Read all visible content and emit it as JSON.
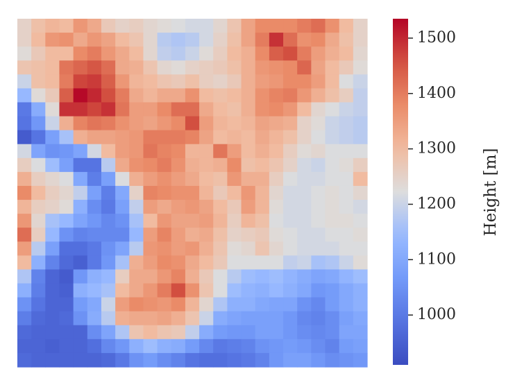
{
  "chart_data": {
    "type": "heatmap",
    "title": "",
    "xlabel": "",
    "ylabel": "",
    "rows": 25,
    "cols": 25,
    "colormap": "coolwarm",
    "vmin": 910,
    "vmax": 1535,
    "colorbar": {
      "label": "Height [m]",
      "ticks": [
        1000,
        1100,
        1200,
        1300,
        1400,
        1500
      ],
      "tick_labels": [
        "1000",
        "1100",
        "1200",
        "1300",
        "1400",
        "1500"
      ]
    },
    "values": [
      [
        1250,
        1290,
        1310,
        1300,
        1360,
        1330,
        1270,
        1250,
        1260,
        1240,
        1230,
        1220,
        1210,
        1210,
        1240,
        1280,
        1340,
        1380,
        1380,
        1380,
        1400,
        1420,
        1370,
        1300,
        1250
      ],
      [
        1250,
        1300,
        1360,
        1370,
        1330,
        1360,
        1340,
        1300,
        1280,
        1240,
        1180,
        1170,
        1180,
        1210,
        1250,
        1290,
        1340,
        1400,
        1490,
        1420,
        1370,
        1380,
        1330,
        1290,
        1250
      ],
      [
        1230,
        1270,
        1300,
        1300,
        1380,
        1400,
        1360,
        1330,
        1300,
        1240,
        1190,
        1180,
        1200,
        1230,
        1260,
        1300,
        1320,
        1380,
        1440,
        1460,
        1400,
        1350,
        1320,
        1300,
        1240
      ],
      [
        1280,
        1290,
        1300,
        1410,
        1430,
        1450,
        1420,
        1330,
        1320,
        1280,
        1240,
        1230,
        1250,
        1260,
        1270,
        1290,
        1320,
        1360,
        1370,
        1380,
        1430,
        1340,
        1300,
        1270,
        1230
      ],
      [
        1200,
        1290,
        1300,
        1400,
        1470,
        1480,
        1440,
        1360,
        1310,
        1300,
        1280,
        1270,
        1290,
        1260,
        1250,
        1270,
        1320,
        1350,
        1360,
        1380,
        1380,
        1350,
        1300,
        1220,
        1200
      ],
      [
        1140,
        1230,
        1270,
        1440,
        1530,
        1500,
        1460,
        1400,
        1330,
        1310,
        1330,
        1330,
        1370,
        1300,
        1290,
        1300,
        1320,
        1370,
        1390,
        1400,
        1360,
        1320,
        1290,
        1260,
        1190
      ],
      [
        1000,
        1110,
        1230,
        1490,
        1490,
        1470,
        1490,
        1410,
        1350,
        1350,
        1380,
        1420,
        1420,
        1330,
        1300,
        1290,
        1320,
        1370,
        1380,
        1360,
        1300,
        1240,
        1220,
        1200,
        1190
      ],
      [
        990,
        1060,
        1200,
        1320,
        1390,
        1410,
        1400,
        1370,
        1350,
        1340,
        1360,
        1380,
        1460,
        1350,
        1310,
        1300,
        1310,
        1340,
        1330,
        1320,
        1250,
        1230,
        1200,
        1190,
        1180
      ],
      [
        940,
        990,
        1080,
        1160,
        1320,
        1340,
        1340,
        1350,
        1360,
        1400,
        1400,
        1400,
        1390,
        1340,
        1300,
        1310,
        1300,
        1330,
        1310,
        1290,
        1250,
        1220,
        1200,
        1190,
        1180
      ],
      [
        1210,
        1090,
        1050,
        1060,
        1090,
        1210,
        1300,
        1350,
        1360,
        1410,
        1390,
        1380,
        1310,
        1310,
        1410,
        1350,
        1300,
        1320,
        1300,
        1260,
        1230,
        1240,
        1220,
        1220,
        1220
      ],
      [
        1260,
        1220,
        1150,
        1080,
        990,
        990,
        1180,
        1330,
        1370,
        1380,
        1400,
        1370,
        1320,
        1310,
        1320,
        1380,
        1290,
        1300,
        1280,
        1250,
        1210,
        1200,
        1220,
        1230,
        1260
      ],
      [
        1320,
        1260,
        1240,
        1220,
        1100,
        1010,
        1080,
        1220,
        1320,
        1350,
        1370,
        1350,
        1330,
        1300,
        1290,
        1360,
        1320,
        1320,
        1260,
        1220,
        1210,
        1210,
        1220,
        1220,
        1300
      ],
      [
        1380,
        1300,
        1260,
        1240,
        1190,
        1080,
        1010,
        1100,
        1250,
        1390,
        1380,
        1370,
        1370,
        1310,
        1270,
        1300,
        1360,
        1310,
        1240,
        1210,
        1210,
        1220,
        1230,
        1220,
        1240
      ],
      [
        1310,
        1260,
        1250,
        1230,
        1120,
        1040,
        1000,
        1080,
        1190,
        1350,
        1330,
        1350,
        1360,
        1340,
        1300,
        1270,
        1350,
        1310,
        1230,
        1210,
        1210,
        1220,
        1230,
        1220,
        1210
      ],
      [
        1360,
        1240,
        1160,
        1140,
        1090,
        1060,
        1030,
        1050,
        1160,
        1300,
        1360,
        1340,
        1340,
        1350,
        1310,
        1260,
        1310,
        1290,
        1220,
        1210,
        1210,
        1220,
        1230,
        1230,
        1220
      ],
      [
        1420,
        1260,
        1140,
        1050,
        1020,
        1030,
        1030,
        1030,
        1140,
        1350,
        1390,
        1350,
        1320,
        1330,
        1290,
        1250,
        1260,
        1270,
        1230,
        1220,
        1210,
        1210,
        1220,
        1220,
        1230
      ],
      [
        1350,
        1180,
        1080,
        980,
        980,
        1000,
        1050,
        1090,
        1180,
        1360,
        1370,
        1350,
        1360,
        1320,
        1280,
        1230,
        1240,
        1280,
        1240,
        1220,
        1210,
        1210,
        1210,
        1220,
        1220
      ],
      [
        1300,
        1120,
        1020,
        970,
        950,
        1000,
        1060,
        1160,
        1320,
        1350,
        1380,
        1370,
        1330,
        1300,
        1270,
        1220,
        1220,
        1220,
        1220,
        1190,
        1200,
        1160,
        1170,
        1200,
        1230
      ],
      [
        1170,
        1020,
        960,
        940,
        1060,
        1120,
        1140,
        1260,
        1330,
        1330,
        1360,
        1390,
        1320,
        1270,
        1220,
        1180,
        1150,
        1140,
        1150,
        1130,
        1110,
        1090,
        1100,
        1130,
        1150
      ],
      [
        1120,
        1010,
        960,
        950,
        1120,
        1140,
        1160,
        1300,
        1330,
        1360,
        1400,
        1460,
        1370,
        1280,
        1220,
        1150,
        1130,
        1120,
        1140,
        1120,
        1100,
        1060,
        1070,
        1100,
        1120
      ],
      [
        1050,
        990,
        960,
        960,
        1070,
        1100,
        1200,
        1350,
        1380,
        1370,
        1360,
        1380,
        1310,
        1240,
        1170,
        1120,
        1120,
        1100,
        1090,
        1090,
        1050,
        1030,
        1070,
        1100,
        1120
      ],
      [
        1010,
        970,
        960,
        970,
        1050,
        1110,
        1180,
        1320,
        1330,
        1330,
        1340,
        1320,
        1280,
        1200,
        1110,
        1090,
        1080,
        1080,
        1080,
        1060,
        1030,
        1020,
        1040,
        1080,
        1100
      ],
      [
        970,
        960,
        960,
        960,
        960,
        1040,
        1090,
        1170,
        1280,
        1300,
        1280,
        1270,
        1190,
        1110,
        1070,
        1060,
        1060,
        1080,
        1080,
        1060,
        1040,
        1030,
        1040,
        1090,
        1090
      ],
      [
        960,
        960,
        950,
        960,
        960,
        980,
        1030,
        1060,
        1120,
        1150,
        1120,
        1110,
        1070,
        1030,
        1000,
        1010,
        1020,
        1050,
        1060,
        1070,
        1060,
        1040,
        1020,
        1070,
        1080
      ],
      [
        970,
        960,
        960,
        960,
        960,
        960,
        970,
        1000,
        1050,
        1070,
        1040,
        1020,
        990,
        980,
        980,
        990,
        1000,
        1020,
        1060,
        1080,
        1080,
        1060,
        1040,
        1050,
        1060
      ]
    ]
  }
}
